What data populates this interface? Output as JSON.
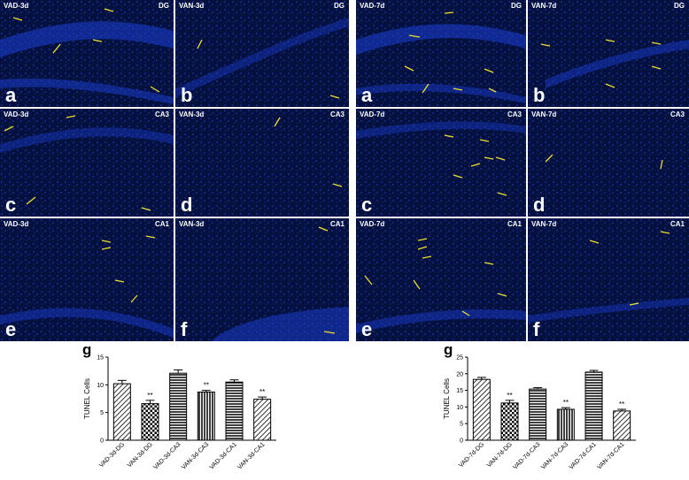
{
  "colors": {
    "background": "#04113f",
    "arrow": "#f0e02a",
    "label": "#ffffff"
  },
  "left_figure": {
    "panels": [
      {
        "condition": "VAD-3d",
        "region": "DG",
        "letter": "a"
      },
      {
        "condition": "VAN-3d",
        "region": "DG",
        "letter": "b"
      },
      {
        "condition": "VAD-3d",
        "region": "CA3",
        "letter": "c"
      },
      {
        "condition": "VAN-3d",
        "region": "CA3",
        "letter": "d"
      },
      {
        "condition": "VAD-3d",
        "region": "CA1",
        "letter": "e"
      },
      {
        "condition": "VAN-3d",
        "region": "CA1",
        "letter": "f"
      }
    ],
    "chart_label": "g"
  },
  "right_figure": {
    "panels": [
      {
        "condition": "VAD-7d",
        "region": "DG",
        "letter": "a"
      },
      {
        "condition": "VAN-7d",
        "region": "DG",
        "letter": "b"
      },
      {
        "condition": "VAD-7d",
        "region": "CA3",
        "letter": "c"
      },
      {
        "condition": "VAN-7d",
        "region": "CA3",
        "letter": "d"
      },
      {
        "condition": "VAD-7d",
        "region": "CA1",
        "letter": "e"
      },
      {
        "condition": "VAN-7d",
        "region": "CA1",
        "letter": "f"
      }
    ],
    "chart_label": "g"
  },
  "chart_data": [
    {
      "type": "bar",
      "ylabel": "TUNEL Cells",
      "ylim": [
        0,
        15
      ],
      "yticks": [
        "0",
        "5",
        "10",
        "15"
      ],
      "categories": [
        "VAD-3d-DG",
        "VAN-3d-DG",
        "VAD-3d-CA3",
        "VAN-3d-CA3",
        "VAD-3d-CA1",
        "VAN-3d-CA1"
      ],
      "values": [
        10.2,
        6.6,
        12.1,
        8.7,
        10.5,
        7.4
      ],
      "errors": [
        0.6,
        0.6,
        0.6,
        0.3,
        0.4,
        0.4
      ],
      "annotations": [
        "",
        "**",
        "",
        "**",
        "",
        "**"
      ],
      "patterns": [
        "diag",
        "check",
        "hlines",
        "vlines",
        "hlines",
        "diag"
      ]
    },
    {
      "type": "bar",
      "ylabel": "TUNEL Cells",
      "ylim": [
        0,
        25
      ],
      "yticks": [
        "0",
        "5",
        "10",
        "15",
        "20",
        "25"
      ],
      "categories": [
        "VAD-7d-DG",
        "VAN-7d-DG",
        "VAD-7d-CA3",
        "VAN-7d-CA3",
        "VAD-7d-CA1",
        "VAN-7d-CA1"
      ],
      "values": [
        18.3,
        11.2,
        15.4,
        9.3,
        20.5,
        8.8
      ],
      "errors": [
        0.6,
        0.8,
        0.4,
        0.5,
        0.5,
        0.5
      ],
      "annotations": [
        "",
        "**",
        "",
        "**",
        "",
        "**"
      ],
      "patterns": [
        "diag",
        "check",
        "hlines",
        "vlines",
        "hlines",
        "diag"
      ]
    }
  ]
}
